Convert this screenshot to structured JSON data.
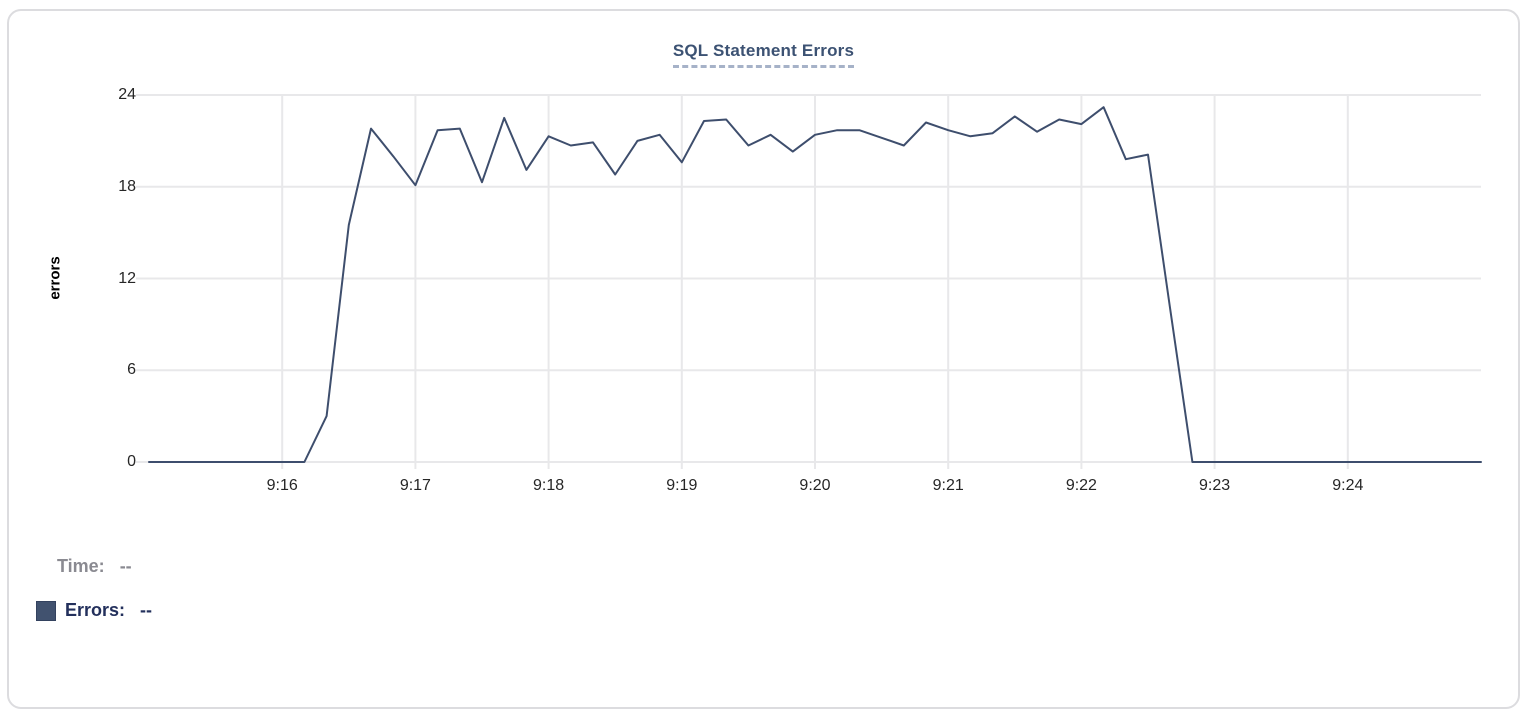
{
  "card": {
    "title": "SQL Statement Errors"
  },
  "colors": {
    "background": "#ffffff",
    "card_border": "#dcdcdf",
    "title": "#3c5273",
    "title_underline": "#a6b2c8",
    "line": "#3e4e6d",
    "grid": "#e8e8ea",
    "tick_text": "#262626",
    "axis_label": "#000000",
    "legend_time": "#8a8a91",
    "legend_errors": "#23305c",
    "swatch": "#41526f"
  },
  "tooltip": {
    "time_label": "Time:",
    "time_value": "--",
    "errors_label": "Errors:",
    "errors_value": "--"
  },
  "chart_data": {
    "type": "line",
    "title": "SQL Statement Errors",
    "xlabel": "",
    "ylabel": "errors",
    "ylim": [
      0,
      24
    ],
    "yticks": [
      0,
      6,
      12,
      18,
      24
    ],
    "xticks": [
      "9:16",
      "9:17",
      "9:18",
      "9:19",
      "9:20",
      "9:21",
      "9:22",
      "9:23",
      "9:24"
    ],
    "x_domain": [
      "9:15:00",
      "9:25:00"
    ],
    "grid": true,
    "legend_position": "below-as-hover-readout",
    "series": [
      {
        "name": "Errors",
        "color": "#3e4e6d",
        "points": [
          [
            "9:15:00",
            0
          ],
          [
            "9:15:10",
            0
          ],
          [
            "9:15:20",
            0
          ],
          [
            "9:15:30",
            0
          ],
          [
            "9:15:40",
            0
          ],
          [
            "9:15:50",
            0
          ],
          [
            "9:16:00",
            0
          ],
          [
            "9:16:10",
            0
          ],
          [
            "9:16:20",
            3
          ],
          [
            "9:16:30",
            15.5
          ],
          [
            "9:16:40",
            21.8
          ],
          [
            "9:16:50",
            20.0
          ],
          [
            "9:17:00",
            18.1
          ],
          [
            "9:17:10",
            21.7
          ],
          [
            "9:17:20",
            21.8
          ],
          [
            "9:17:30",
            18.3
          ],
          [
            "9:17:40",
            22.5
          ],
          [
            "9:17:50",
            19.1
          ],
          [
            "9:18:00",
            21.3
          ],
          [
            "9:18:10",
            20.7
          ],
          [
            "9:18:20",
            20.9
          ],
          [
            "9:18:30",
            18.8
          ],
          [
            "9:18:40",
            21.0
          ],
          [
            "9:18:50",
            21.4
          ],
          [
            "9:19:00",
            19.6
          ],
          [
            "9:19:10",
            22.3
          ],
          [
            "9:19:20",
            22.4
          ],
          [
            "9:19:30",
            20.7
          ],
          [
            "9:19:40",
            21.4
          ],
          [
            "9:19:50",
            20.3
          ],
          [
            "9:20:00",
            21.4
          ],
          [
            "9:20:10",
            21.7
          ],
          [
            "9:20:20",
            21.7
          ],
          [
            "9:20:30",
            21.2
          ],
          [
            "9:20:40",
            20.7
          ],
          [
            "9:20:50",
            22.2
          ],
          [
            "9:21:00",
            21.7
          ],
          [
            "9:21:10",
            21.3
          ],
          [
            "9:21:20",
            21.5
          ],
          [
            "9:21:30",
            22.6
          ],
          [
            "9:21:40",
            21.6
          ],
          [
            "9:21:50",
            22.4
          ],
          [
            "9:22:00",
            22.1
          ],
          [
            "9:22:10",
            23.2
          ],
          [
            "9:22:20",
            19.8
          ],
          [
            "9:22:30",
            20.1
          ],
          [
            "9:22:40",
            10.0
          ],
          [
            "9:22:50",
            0
          ],
          [
            "9:23:00",
            0
          ],
          [
            "9:23:10",
            0
          ],
          [
            "9:23:20",
            0
          ],
          [
            "9:23:30",
            0
          ],
          [
            "9:23:40",
            0
          ],
          [
            "9:23:50",
            0
          ],
          [
            "9:24:00",
            0
          ],
          [
            "9:24:10",
            0
          ],
          [
            "9:24:20",
            0
          ],
          [
            "9:24:30",
            0
          ],
          [
            "9:24:40",
            0
          ],
          [
            "9:24:50",
            0
          ],
          [
            "9:25:00",
            0
          ]
        ]
      }
    ]
  }
}
